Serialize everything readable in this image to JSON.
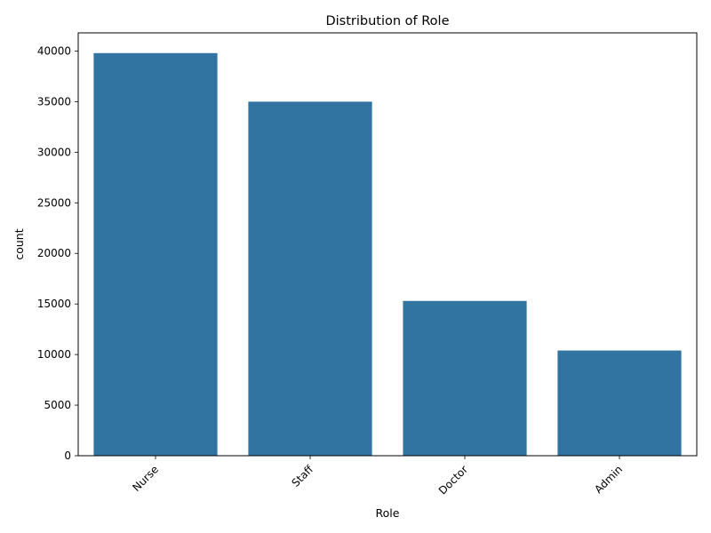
{
  "chart_data": {
    "type": "bar",
    "title": "Distribution of Role",
    "xlabel": "Role",
    "ylabel": "count",
    "categories": [
      "Nurse",
      "Staff",
      "Doctor",
      "Admin"
    ],
    "values": [
      39800,
      35000,
      15300,
      10400
    ],
    "ylim": [
      0,
      41800
    ],
    "yticks": [
      0,
      5000,
      10000,
      15000,
      20000,
      25000,
      30000,
      35000,
      40000
    ],
    "bar_color": "#3274a1",
    "grid": false,
    "xtick_rotation": 45
  }
}
